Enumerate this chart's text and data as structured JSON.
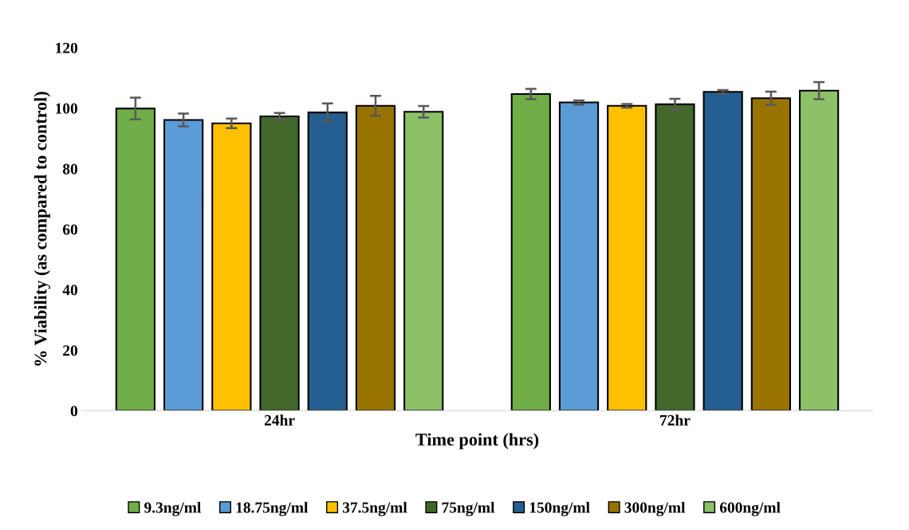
{
  "chart_data": {
    "type": "bar",
    "xlabel": "Time point (hrs)",
    "ylabel": "% Viability (as compared to control)",
    "categories": [
      "24hr",
      "72hr"
    ],
    "series": [
      {
        "name": "9.3ng/ml",
        "color": "#70ad47",
        "values": [
          99.9,
          104.7
        ],
        "errors": [
          3.6,
          1.7
        ]
      },
      {
        "name": "18.75ng/ml",
        "color": "#5b9bd5",
        "values": [
          96.1,
          101.9
        ],
        "errors": [
          2.1,
          0.7
        ]
      },
      {
        "name": "37.5ng/ml",
        "color": "#ffc000",
        "values": [
          95.0,
          100.8
        ],
        "errors": [
          1.6,
          0.6
        ]
      },
      {
        "name": "75ng/ml",
        "color": "#43682b",
        "values": [
          97.3,
          101.3
        ],
        "errors": [
          1.1,
          1.8
        ]
      },
      {
        "name": "150ng/ml",
        "color": "#255e91",
        "values": [
          98.6,
          105.4
        ],
        "errors": [
          3.0,
          0.6
        ]
      },
      {
        "name": "300ng/ml",
        "color": "#997300",
        "values": [
          100.8,
          103.3
        ],
        "errors": [
          3.3,
          2.2
        ]
      },
      {
        "name": "600ng/ml",
        "color": "#8cc168",
        "values": [
          98.8,
          105.8
        ],
        "errors": [
          1.9,
          2.8
        ]
      }
    ],
    "ylim": [
      0,
      120
    ],
    "yticks": [
      0,
      20,
      40,
      60,
      80,
      100,
      120
    ],
    "grid": false,
    "legend": "bottom"
  }
}
